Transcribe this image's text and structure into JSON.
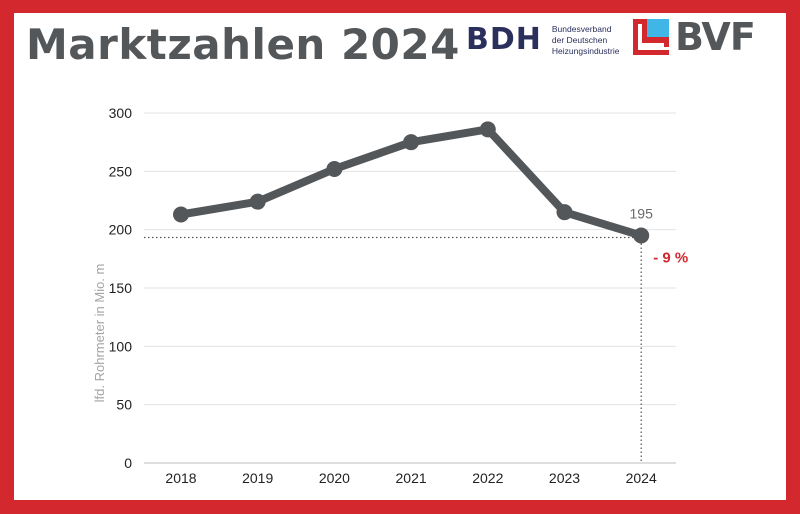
{
  "header": {
    "title": "Marktzahlen 2024",
    "logos": {
      "bdh": {
        "mark": "BDH",
        "lines": [
          "Bundesverband",
          "der Deutschen",
          "Heizungsindustrie"
        ]
      },
      "bvf": {
        "mark": "BVF"
      }
    }
  },
  "colors": {
    "frame": "#d3282e",
    "line": "#54575a",
    "accent": "#d3282e",
    "bdh_blue": "#2a2f5b",
    "bvf_cyan": "#3fb6e6"
  },
  "chart_data": {
    "type": "line",
    "title": "",
    "xlabel": "",
    "ylabel": "lfd. Rohrmeter in Mio. m",
    "categories": [
      "2018",
      "2019",
      "2020",
      "2021",
      "2022",
      "2023",
      "2024"
    ],
    "series": [
      {
        "values": [
          213,
          224,
          252,
          275,
          286,
          215,
          195
        ]
      }
    ],
    "ylim": [
      0,
      300
    ],
    "yticks": [
      0,
      50,
      100,
      150,
      200,
      250,
      300
    ],
    "grid": "horizontal",
    "annotations": [
      {
        "category": "2024",
        "text": "195"
      },
      {
        "category": "2024",
        "text": "- 9 %"
      }
    ]
  }
}
